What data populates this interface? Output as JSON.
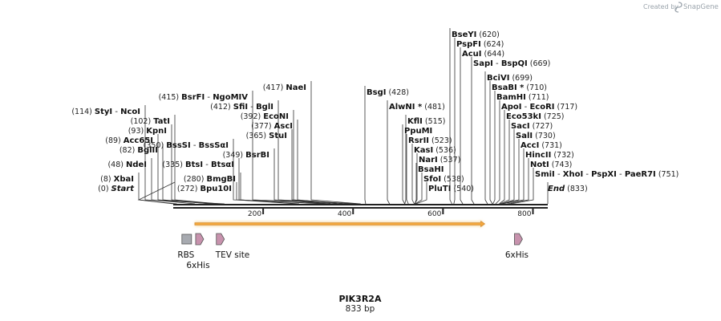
{
  "credit": {
    "prefix": "Created by",
    "brand": "SnapGene",
    "icon": "snapgene-logo-icon"
  },
  "sequence": {
    "name": "PIK3R2A",
    "length_label": "833 bp",
    "length": 833
  },
  "ruler": {
    "ticks": [
      200,
      400,
      600,
      800
    ]
  },
  "colors": {
    "backbone": "#222222",
    "orf_fill": "#f3a73d",
    "orf_glow": "#f8dfad",
    "tag": "#c792ad",
    "rbs": "#a7aab0"
  },
  "enzymes": [
    {
      "name": "Start",
      "pos": "(0)",
      "site": 0,
      "italic": true,
      "pos_first": true
    },
    {
      "name": "XbaI",
      "pos": "(8)",
      "site": 8,
      "pos_first": true
    },
    {
      "name": "NdeI",
      "pos": "(48)",
      "site": 48,
      "pos_first": true
    },
    {
      "name": "BglII",
      "pos": "(82)",
      "site": 82,
      "pos_first": true
    },
    {
      "name": "Acc65I",
      "pos": "(89)",
      "site": 89,
      "pos_first": true
    },
    {
      "name": "KpnI",
      "pos": "(93)",
      "site": 93,
      "pos_first": true
    },
    {
      "name": "TatI",
      "pos": "(102)",
      "site": 102,
      "pos_first": true
    },
    {
      "name": "StyI",
      "name2": "NcoI",
      "pos": "(114)",
      "site": 114,
      "pos_first": true
    },
    {
      "name": "Bpu10I",
      "pos": "(272)",
      "site": 272,
      "pos_first": true
    },
    {
      "name": "BmgBI",
      "pos": "(280)",
      "site": 280,
      "pos_first": true
    },
    {
      "name": "BtsI",
      "name2": "BtsαI",
      "pos": "(335)",
      "site": 335,
      "pos_first": true
    },
    {
      "name": "BsrBI",
      "pos": "(349)",
      "site": 349,
      "pos_first": true
    },
    {
      "name": "BssSI",
      "name2": "BssSαI",
      "pos": "(350)",
      "site": 350,
      "pos_first": true
    },
    {
      "name": "StuI",
      "pos": "(365)",
      "site": 365,
      "pos_first": true
    },
    {
      "name": "AscI",
      "pos": "(377)",
      "site": 377,
      "pos_first": true
    },
    {
      "name": "EcoNI",
      "pos": "(392)",
      "site": 392,
      "pos_first": true
    },
    {
      "name": "SfiI",
      "name2": "BglI",
      "pos": "(412)",
      "site": 412,
      "pos_first": true
    },
    {
      "name": "BsrFI",
      "name2": "NgoMIV",
      "pos": "(415)",
      "site": 415,
      "pos_first": true
    },
    {
      "name": "NaeI",
      "pos": "(417)",
      "site": 417,
      "pos_first": true
    },
    {
      "name": "BsgI",
      "pos": "(428)",
      "site": 428
    },
    {
      "name": "AlwNI *",
      "pos": "(481)",
      "site": 481
    },
    {
      "name": "KflI",
      "pos": "(515)",
      "site": 515
    },
    {
      "name": "PpuMI",
      "pos": "",
      "site": 515
    },
    {
      "name": "RsrII",
      "pos": "(523)",
      "site": 523
    },
    {
      "name": "KasI",
      "pos": "(536)",
      "site": 536
    },
    {
      "name": "NarI",
      "pos": "(537)",
      "site": 537
    },
    {
      "name": "BsaHI",
      "pos": "",
      "site": 537
    },
    {
      "name": "SfoI",
      "pos": "(538)",
      "site": 538
    },
    {
      "name": "PluTI",
      "pos": "(540)",
      "site": 540
    },
    {
      "name": "BseYI",
      "pos": "(620)",
      "site": 620
    },
    {
      "name": "PspFI",
      "pos": "(624)",
      "site": 624
    },
    {
      "name": "AcuI",
      "pos": "(644)",
      "site": 644
    },
    {
      "name": "SapI",
      "name2": "BspQI",
      "pos": "(669)",
      "site": 669
    },
    {
      "name": "BciVI",
      "pos": "(699)",
      "site": 699
    },
    {
      "name": "BsaBI *",
      "pos": "(710)",
      "site": 710
    },
    {
      "name": "BamHI",
      "pos": "(711)",
      "site": 711
    },
    {
      "name": "ApoI",
      "name2": "EcoRI",
      "pos": "(717)",
      "site": 717
    },
    {
      "name": "Eco53kI",
      "pos": "(725)",
      "site": 725
    },
    {
      "name": "SacI",
      "pos": "(727)",
      "site": 727
    },
    {
      "name": "SalI",
      "pos": "(730)",
      "site": 730
    },
    {
      "name": "AccI",
      "pos": "(731)",
      "site": 731
    },
    {
      "name": "HincII",
      "pos": "(732)",
      "site": 732
    },
    {
      "name": "NotI",
      "pos": "(743)",
      "site": 743
    },
    {
      "name": "SmiI",
      "name2": "XhoI",
      "name3": "PspXI",
      "name4": "PaeR7I",
      "pos": "(751)",
      "site": 751
    },
    {
      "name": "End",
      "pos": "(833)",
      "site": 833,
      "italic": true
    }
  ],
  "features": {
    "orf": {
      "start": 48,
      "end": 693
    },
    "rbs": {
      "label": "RBS",
      "site": 30
    },
    "his1": {
      "label": "6xHis",
      "site": 57
    },
    "tev": {
      "label": "TEV site",
      "site": 103
    },
    "his2": {
      "label": "6xHis",
      "site": 766
    }
  }
}
